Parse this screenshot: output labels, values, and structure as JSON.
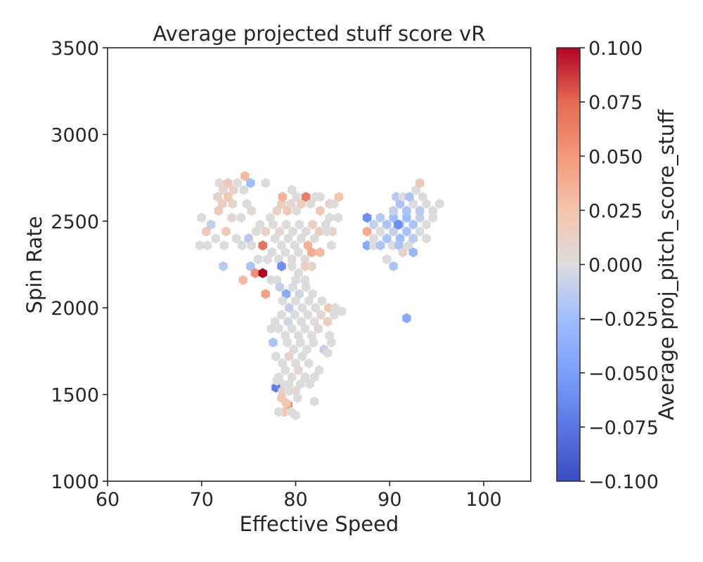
{
  "chart_data": {
    "type": "hexbin",
    "title": "Average projected stuff score vR",
    "xlabel": "Effective Speed",
    "ylabel": "Spin Rate",
    "xlim": [
      60,
      105
    ],
    "ylim": [
      1000,
      3500
    ],
    "xticks": [
      "60",
      "70",
      "80",
      "90",
      "100"
    ],
    "yticks": [
      "1000",
      "1500",
      "2000",
      "2500",
      "3000",
      "3500"
    ],
    "grid": false,
    "colorbar": {
      "label": "Average proj_pitch_score_stuff",
      "colormap": "coolwarm",
      "range": [
        -0.1,
        0.1
      ],
      "ticks": [
        "−0.100",
        "−0.075",
        "−0.050",
        "−0.025",
        "0.000",
        "0.025",
        "0.050",
        "0.075",
        "0.100"
      ]
    },
    "points": [
      [
        70,
        2520,
        0.0
      ],
      [
        71,
        2480,
        -0.01
      ],
      [
        70.5,
        2440,
        0.02
      ],
      [
        69.8,
        2360,
        0.0
      ],
      [
        70.6,
        2360,
        0.0
      ],
      [
        71.8,
        2560,
        0.02
      ],
      [
        72.2,
        2600,
        0.015
      ],
      [
        71.7,
        2640,
        0.01
      ],
      [
        72.3,
        2680,
        0.005
      ],
      [
        72.8,
        2720,
        0.02
      ],
      [
        73.4,
        2680,
        0.01
      ],
      [
        72.8,
        2640,
        0.02
      ],
      [
        73.3,
        2600,
        0.01
      ],
      [
        71.9,
        2720,
        0.005
      ],
      [
        73.8,
        2720,
        0.0
      ],
      [
        74.6,
        2760,
        0.03
      ],
      [
        75.2,
        2720,
        -0.025
      ],
      [
        74.5,
        2680,
        0.0
      ],
      [
        72.6,
        2440,
        0.02
      ],
      [
        71.5,
        2400,
        0.0
      ],
      [
        72.4,
        2360,
        0.0
      ],
      [
        73.2,
        2520,
        0.005
      ],
      [
        74.2,
        2520,
        0.0
      ],
      [
        73.7,
        2400,
        0.0
      ],
      [
        74.3,
        2360,
        0.0
      ],
      [
        75.0,
        2400,
        -0.015
      ],
      [
        75.8,
        2440,
        0.0
      ],
      [
        75.3,
        2360,
        0.0
      ],
      [
        76.2,
        2480,
        0.0
      ],
      [
        76.8,
        2440,
        0.01
      ],
      [
        74.8,
        2600,
        0.0
      ],
      [
        75.3,
        2560,
        0.005
      ],
      [
        72.3,
        2240,
        -0.015
      ],
      [
        74.4,
        2160,
        0.03
      ],
      [
        75.2,
        2240,
        -0.02
      ],
      [
        76.0,
        2280,
        0.0
      ],
      [
        76.5,
        2360,
        0.07
      ],
      [
        75.7,
        2200,
        0.055
      ],
      [
        76.5,
        2200,
        0.1
      ],
      [
        77.0,
        2280,
        0.0
      ],
      [
        76.8,
        2080,
        0.045
      ],
      [
        77.4,
        2160,
        0.0
      ],
      [
        76.8,
        2720,
        0.0
      ],
      [
        77.3,
        2520,
        0.0
      ],
      [
        78.0,
        2560,
        0.01
      ],
      [
        78.5,
        2600,
        0.015
      ],
      [
        79.1,
        2560,
        0.02
      ],
      [
        79.5,
        2600,
        0.005
      ],
      [
        80.1,
        2560,
        0.0
      ],
      [
        80.6,
        2600,
        0.015
      ],
      [
        78.6,
        2640,
        0.035
      ],
      [
        79.6,
        2680,
        0.0
      ],
      [
        80.1,
        2640,
        0.0
      ],
      [
        81.1,
        2640,
        0.065
      ],
      [
        81.6,
        2600,
        0.0
      ],
      [
        82.1,
        2640,
        0.0
      ],
      [
        82.6,
        2640,
        0.0
      ],
      [
        83.6,
        2600,
        0.01
      ],
      [
        84.6,
        2640,
        0.025
      ],
      [
        84.1,
        2600,
        0.0
      ],
      [
        77.6,
        2480,
        0.0
      ],
      [
        78.3,
        2440,
        0.005
      ],
      [
        79.0,
        2480,
        0.0
      ],
      [
        79.7,
        2440,
        0.0
      ],
      [
        80.4,
        2480,
        0.0
      ],
      [
        81.1,
        2440,
        0.0
      ],
      [
        81.8,
        2480,
        0.015
      ],
      [
        82.5,
        2440,
        0.015
      ],
      [
        83.2,
        2480,
        0.0
      ],
      [
        83.9,
        2440,
        0.01
      ],
      [
        84.5,
        2520,
        0.0
      ],
      [
        83.6,
        2520,
        0.0
      ],
      [
        82.6,
        2560,
        0.02
      ],
      [
        77.8,
        2400,
        0.0
      ],
      [
        78.5,
        2360,
        0.0
      ],
      [
        79.2,
        2400,
        0.0
      ],
      [
        79.9,
        2360,
        0.0
      ],
      [
        80.6,
        2400,
        0.0
      ],
      [
        81.3,
        2360,
        0.035
      ],
      [
        82.0,
        2400,
        0.0
      ],
      [
        83.3,
        2440,
        0.0
      ],
      [
        77.5,
        2320,
        0.0
      ],
      [
        78.2,
        2280,
        0.0
      ],
      [
        78.9,
        2320,
        0.0
      ],
      [
        79.6,
        2280,
        0.0
      ],
      [
        80.3,
        2320,
        0.0
      ],
      [
        81.0,
        2280,
        0.0
      ],
      [
        81.7,
        2320,
        0.04
      ],
      [
        82.6,
        2320,
        0.03
      ],
      [
        83.8,
        2360,
        0.0
      ],
      [
        78.5,
        2240,
        -0.06
      ],
      [
        79.6,
        2240,
        0.0
      ],
      [
        80.3,
        2200,
        0.0
      ],
      [
        81.0,
        2240,
        0.015
      ],
      [
        81.7,
        2240,
        0.01
      ],
      [
        78.0,
        2160,
        0.0
      ],
      [
        80.0,
        2160,
        0.0
      ],
      [
        81.0,
        2160,
        0.0
      ],
      [
        78.3,
        2120,
        -0.01
      ],
      [
        79.0,
        2080,
        -0.04
      ],
      [
        79.7,
        2120,
        0.0
      ],
      [
        80.4,
        2080,
        -0.005
      ],
      [
        81.1,
        2120,
        0.0
      ],
      [
        81.8,
        2080,
        0.0
      ],
      [
        78.6,
        2040,
        0.0
      ],
      [
        79.3,
        2000,
        -0.01
      ],
      [
        80.0,
        2040,
        0.0
      ],
      [
        80.7,
        2000,
        0.0
      ],
      [
        81.4,
        2040,
        0.0
      ],
      [
        82.1,
        2000,
        0.0
      ],
      [
        82.8,
        2040,
        0.0
      ],
      [
        83.5,
        2000,
        0.02
      ],
      [
        84.2,
        2000,
        0.0
      ],
      [
        84.9,
        1980,
        0.0
      ],
      [
        77.8,
        1920,
        0.0
      ],
      [
        78.5,
        1960,
        0.0
      ],
      [
        79.2,
        1920,
        -0.005
      ],
      [
        79.9,
        1960,
        0.0
      ],
      [
        80.6,
        1920,
        0.0
      ],
      [
        81.3,
        1960,
        0.0
      ],
      [
        82.0,
        1920,
        0.0
      ],
      [
        82.7,
        1960,
        0.005
      ],
      [
        83.4,
        1920,
        0.015
      ],
      [
        84.1,
        1960,
        0.0
      ],
      [
        77.4,
        1880,
        0.0
      ],
      [
        78.2,
        1880,
        0.0
      ],
      [
        78.9,
        1840,
        0.0
      ],
      [
        79.6,
        1880,
        0.0
      ],
      [
        80.3,
        1840,
        0.0
      ],
      [
        81.0,
        1880,
        0.0
      ],
      [
        81.7,
        1840,
        0.0
      ],
      [
        82.4,
        1880,
        0.005
      ],
      [
        83.6,
        1840,
        0.0
      ],
      [
        77.6,
        1800,
        -0.02
      ],
      [
        79.1,
        1800,
        0.0
      ],
      [
        79.8,
        1760,
        0.0
      ],
      [
        80.5,
        1800,
        0.0
      ],
      [
        81.2,
        1760,
        0.0
      ],
      [
        81.9,
        1800,
        0.0
      ],
      [
        83.0,
        1760,
        -0.01
      ],
      [
        83.8,
        1800,
        0.0
      ],
      [
        77.9,
        1720,
        0.0
      ],
      [
        78.6,
        1680,
        0.0
      ],
      [
        79.3,
        1720,
        0.01
      ],
      [
        80.0,
        1680,
        0.0
      ],
      [
        80.7,
        1720,
        0.0
      ],
      [
        81.4,
        1680,
        0.0
      ],
      [
        83.4,
        1740,
        0.0
      ],
      [
        78.9,
        1640,
        0.0
      ],
      [
        79.6,
        1600,
        0.0
      ],
      [
        80.3,
        1640,
        0.005
      ],
      [
        81.0,
        1600,
        0.0
      ],
      [
        78.2,
        1600,
        0.0
      ],
      [
        78.6,
        1560,
        0.0
      ],
      [
        79.3,
        1560,
        0.0
      ],
      [
        77.9,
        1540,
        -0.07
      ],
      [
        78.0,
        1580,
        0.0
      ],
      [
        78.6,
        1520,
        0.01
      ],
      [
        79.3,
        1520,
        0.0
      ],
      [
        80.0,
        1520,
        0.005
      ],
      [
        80.5,
        1560,
        0.0
      ],
      [
        81.5,
        1560,
        0.0
      ],
      [
        82.0,
        1600,
        0.0
      ],
      [
        82.5,
        1640,
        0.0
      ],
      [
        78.5,
        1480,
        0.02
      ],
      [
        79.2,
        1440,
        0.055
      ],
      [
        78.8,
        1400,
        0.025
      ],
      [
        78.2,
        1400,
        0.0
      ],
      [
        79.5,
        1400,
        0.0
      ],
      [
        80.0,
        1380,
        0.0
      ],
      [
        80.2,
        1480,
        0.0
      ],
      [
        82.0,
        1460,
        0.0
      ],
      [
        79.0,
        1450,
        0.02
      ],
      [
        87.6,
        2520,
        -0.06
      ],
      [
        88.3,
        2480,
        -0.01
      ],
      [
        89.0,
        2520,
        -0.015
      ],
      [
        89.7,
        2480,
        -0.02
      ],
      [
        90.4,
        2520,
        -0.025
      ],
      [
        91.1,
        2480,
        -0.015
      ],
      [
        91.8,
        2520,
        -0.025
      ],
      [
        92.5,
        2480,
        -0.02
      ],
      [
        93.2,
        2520,
        -0.01
      ],
      [
        93.9,
        2480,
        0.0
      ],
      [
        94.6,
        2520,
        0.0
      ],
      [
        90.4,
        2560,
        -0.01
      ],
      [
        91.1,
        2600,
        -0.02
      ],
      [
        91.8,
        2560,
        -0.02
      ],
      [
        92.5,
        2600,
        0.0
      ],
      [
        93.2,
        2560,
        -0.015
      ],
      [
        93.9,
        2600,
        0.0
      ],
      [
        94.6,
        2560,
        0.0
      ],
      [
        95.3,
        2600,
        0.0
      ],
      [
        90.7,
        2640,
        -0.015
      ],
      [
        91.4,
        2640,
        0.0
      ],
      [
        92.1,
        2640,
        -0.02
      ],
      [
        92.8,
        2680,
        0.0
      ],
      [
        93.5,
        2640,
        0.0
      ],
      [
        93.2,
        2720,
        0.02
      ],
      [
        87.6,
        2440,
        0.04
      ],
      [
        88.3,
        2400,
        0.0
      ],
      [
        89.0,
        2440,
        0.0
      ],
      [
        89.7,
        2400,
        -0.02
      ],
      [
        90.4,
        2440,
        -0.01
      ],
      [
        91.1,
        2400,
        -0.025
      ],
      [
        91.8,
        2440,
        -0.02
      ],
      [
        92.5,
        2400,
        -0.015
      ],
      [
        93.2,
        2440,
        0.0
      ],
      [
        93.9,
        2400,
        0.0
      ],
      [
        87.6,
        2360,
        -0.04
      ],
      [
        88.3,
        2360,
        0.0
      ],
      [
        89.0,
        2360,
        -0.02
      ],
      [
        90.3,
        2360,
        0.0
      ],
      [
        91.0,
        2360,
        -0.02
      ],
      [
        92.0,
        2360,
        0.0
      ],
      [
        92.5,
        2320,
        -0.03
      ],
      [
        91.4,
        2320,
        0.01
      ],
      [
        89.7,
        2280,
        0.0
      ],
      [
        90.4,
        2240,
        -0.02
      ],
      [
        91.8,
        1940,
        -0.04
      ],
      [
        90.9,
        2480,
        -0.06
      ]
    ]
  }
}
